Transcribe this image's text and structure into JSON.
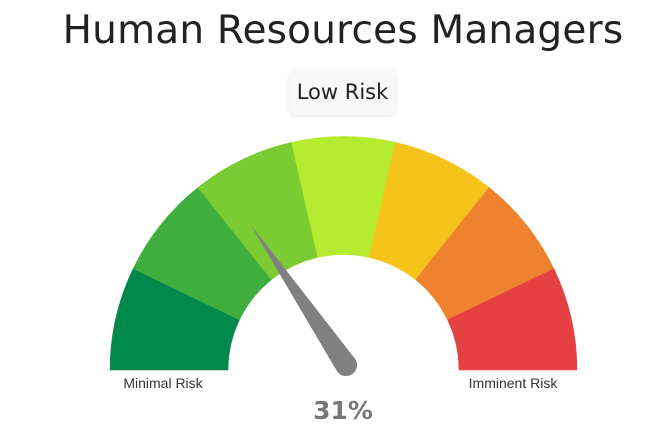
{
  "chart_data": {
    "type": "gauge",
    "title": "Human Resources Managers",
    "status_label": "Low Risk",
    "value": 31,
    "value_label": "31%",
    "range": [
      0,
      100
    ],
    "min_label": "Minimal Risk",
    "max_label": "Imminent Risk",
    "bands": [
      {
        "color": "#00894a"
      },
      {
        "color": "#3fae3e"
      },
      {
        "color": "#7bcb32"
      },
      {
        "color": "#b5ec2f"
      },
      {
        "color": "#f6c31a"
      },
      {
        "color": "#ee822e"
      },
      {
        "color": "#e54142"
      }
    ],
    "needle_color": "#808080"
  }
}
